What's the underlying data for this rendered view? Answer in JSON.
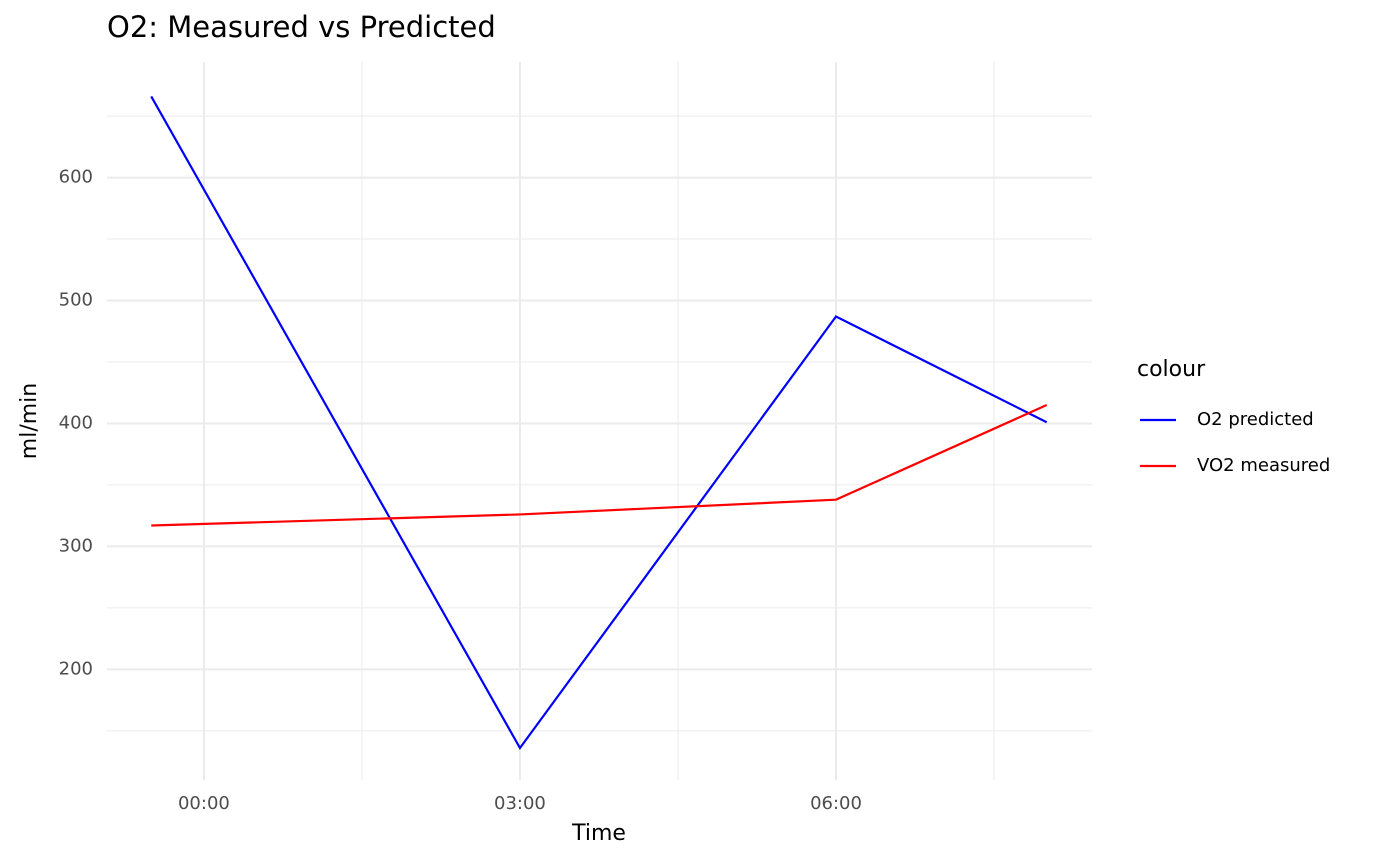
{
  "chart_data": {
    "type": "line",
    "title": "O2: Measured vs Predicted",
    "x_label": "Time",
    "y_label": "ml/min",
    "legend_title": "colour",
    "x": [
      -0.5,
      3,
      6,
      8
    ],
    "series": [
      {
        "name": "O2 predicted",
        "color": "#0000ff",
        "values": [
          666,
          136,
          487,
          401
        ]
      },
      {
        "name": "VO2 measured",
        "color": "#ff0000",
        "values": [
          317,
          326,
          338,
          415
        ]
      }
    ],
    "xlim": [
      -0.92,
      8.43
    ],
    "xticks": [
      {
        "value": 0,
        "label": "00:00"
      },
      {
        "value": 3,
        "label": "03:00"
      },
      {
        "value": 6,
        "label": "06:00"
      }
    ],
    "ylim": [
      110,
      694
    ],
    "yticks": [
      200,
      300,
      400,
      500,
      600
    ],
    "grid": true,
    "legend": "right"
  }
}
